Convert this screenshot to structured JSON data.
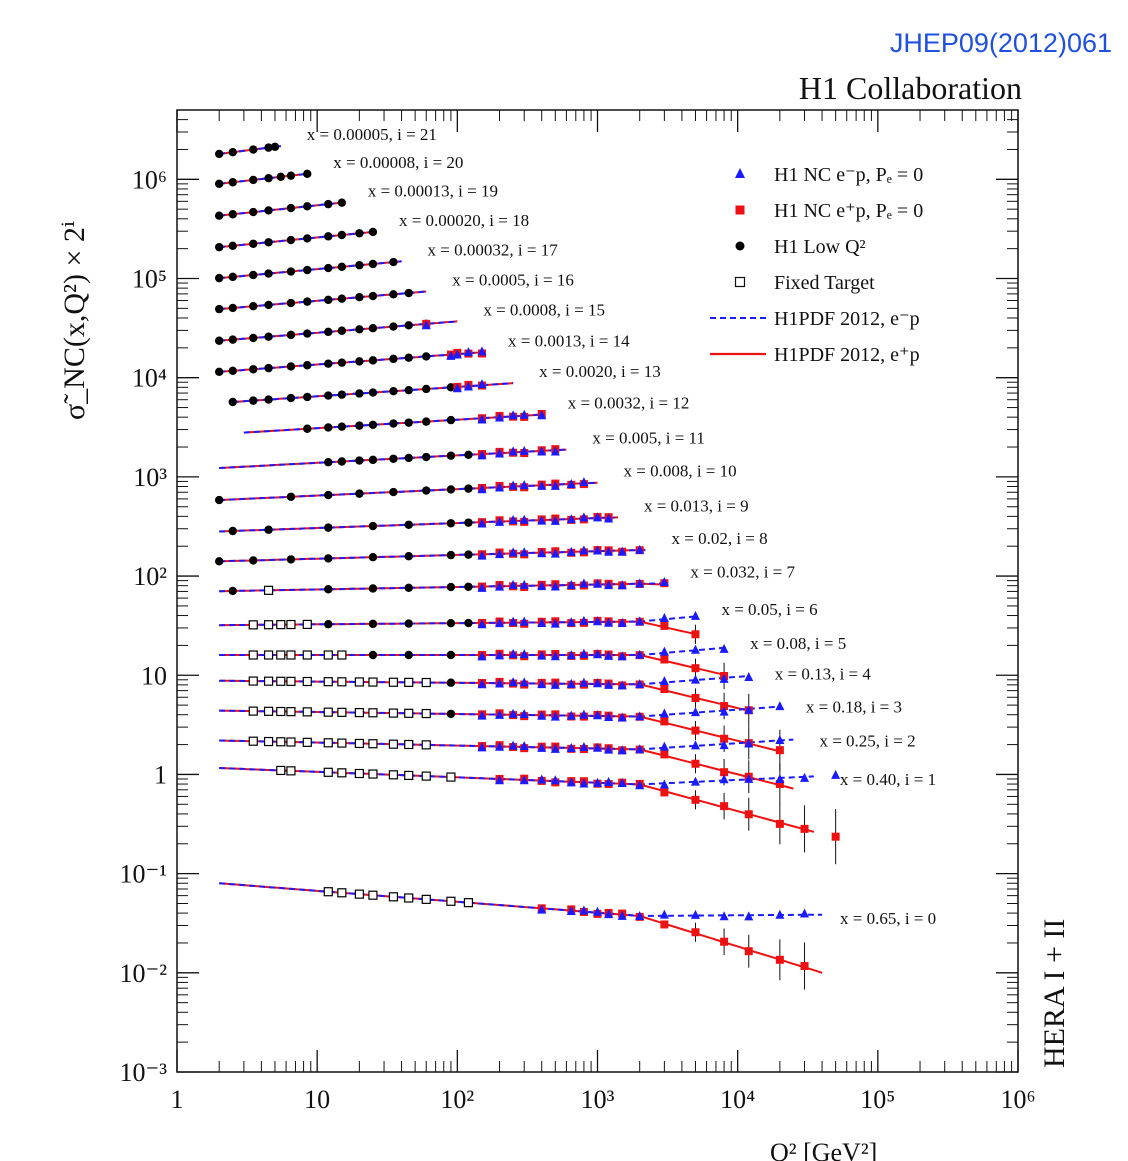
{
  "header": {
    "journal_ref": "JHEP09(2012)061",
    "collaboration": "H1 Collaboration"
  },
  "side_label": "HERA I + II",
  "colors": {
    "ep_minus": "#1a1aff",
    "ep_plus": "#ee1111",
    "low_q2": "#000000",
    "fixed_target": "#000000",
    "journal_ref": "#2050e0"
  },
  "legend": {
    "entries": [
      {
        "marker": "triangle",
        "label": "H1 NC e⁻p, Pₑ = 0"
      },
      {
        "marker": "square-filled",
        "label": "H1 NC e⁺p, Pₑ = 0"
      },
      {
        "marker": "circle",
        "label": "H1 Low Q²"
      },
      {
        "marker": "square-open",
        "label": "Fixed Target"
      },
      {
        "marker": "line-dashed",
        "label": "H1PDF 2012, e⁻p"
      },
      {
        "marker": "line-solid",
        "label": "H1PDF 2012, e⁺p"
      }
    ]
  },
  "chart_data": {
    "type": "scatter",
    "title": "",
    "xlabel": "Q² [GeV²]",
    "ylabel": "σ̃_NC(x,Q²) × 2ⁱ",
    "xscale": "log",
    "yscale": "log",
    "xlim": [
      1,
      1000000
    ],
    "ylim": [
      0.001,
      5000000
    ],
    "x_ticks": [
      "1",
      "10",
      "10²",
      "10³",
      "10⁴",
      "10⁵",
      "10⁶"
    ],
    "y_ticks": [
      "10⁻³",
      "10⁻²",
      "10⁻¹",
      "1",
      "10",
      "10²",
      "10³",
      "10⁴",
      "10⁵",
      "10⁶"
    ],
    "legend_position": "top-right",
    "bins": [
      {
        "label": "x = 0.00005, i = 21",
        "x": 5e-05,
        "i": 21,
        "base": 0.86,
        "qmin": 2.0,
        "qmax": 5.5,
        "slope": 0.18,
        "lowq": [
          2.0,
          2.5,
          3.5,
          4.5,
          5.0
        ]
      },
      {
        "label": "x = 0.00008, i = 20",
        "x": 8e-05,
        "i": 20,
        "base": 0.86,
        "qmin": 2.0,
        "qmax": 8.5,
        "slope": 0.16,
        "lowq": [
          2.0,
          2.5,
          3.5,
          4.5,
          5.5,
          6.5,
          8.5
        ]
      },
      {
        "label": "x = 0.00013, i = 19",
        "x": 0.00013,
        "i": 19,
        "base": 0.82,
        "qmin": 2.0,
        "qmax": 15,
        "slope": 0.15,
        "lowq": [
          2.0,
          2.5,
          3.5,
          4.5,
          6.5,
          8.5,
          12,
          15
        ]
      },
      {
        "label": "x = 0.00020, i = 18",
        "x": 0.0002,
        "i": 18,
        "base": 0.79,
        "qmin": 2.0,
        "qmax": 25,
        "slope": 0.14,
        "lowq": [
          2.0,
          2.5,
          3.5,
          4.5,
          6.5,
          8.5,
          12,
          15,
          20,
          25
        ]
      },
      {
        "label": "x = 0.00032, i = 17",
        "x": 0.00032,
        "i": 17,
        "base": 0.77,
        "qmin": 2.0,
        "qmax": 40,
        "slope": 0.13,
        "lowq": [
          2.0,
          2.5,
          3.5,
          4.5,
          6.5,
          8.5,
          12,
          15,
          20,
          25,
          35
        ]
      },
      {
        "label": "x = 0.0005, i = 16",
        "x": 0.0005,
        "i": 16,
        "base": 0.75,
        "qmin": 2.0,
        "qmax": 60,
        "slope": 0.12,
        "lowq": [
          2.0,
          2.5,
          3.5,
          4.5,
          6.5,
          8.5,
          12,
          15,
          20,
          25,
          35,
          45
        ]
      },
      {
        "label": "x = 0.0008, i = 15",
        "x": 0.0008,
        "i": 15,
        "base": 0.72,
        "qmin": 2.0,
        "qmax": 100,
        "slope": 0.115,
        "lowq": [
          2.0,
          2.5,
          3.5,
          4.5,
          6.5,
          8.5,
          12,
          15,
          20,
          25,
          35,
          45,
          60
        ],
        "nc": [
          60
        ]
      },
      {
        "label": "x = 0.0013, i = 14",
        "x": 0.0013,
        "i": 14,
        "base": 0.7,
        "qmin": 2.0,
        "qmax": 150,
        "slope": 0.105,
        "lowq": [
          2.0,
          2.5,
          3.5,
          4.5,
          6.5,
          8.5,
          12,
          15,
          20,
          25,
          35,
          45,
          60
        ],
        "nc": [
          90,
          100,
          120,
          150
        ]
      },
      {
        "label": "x = 0.0020, i = 13",
        "x": 0.002,
        "i": 13,
        "base": 0.68,
        "qmin": 2.5,
        "qmax": 250,
        "slope": 0.095,
        "lowq": [
          2.5,
          3.5,
          4.5,
          6.5,
          8.5,
          12,
          15,
          20,
          25,
          35,
          45,
          60,
          90
        ],
        "nc": [
          100,
          120,
          150
        ]
      },
      {
        "label": "x = 0.0032, i = 12",
        "x": 0.0032,
        "i": 12,
        "base": 0.66,
        "qmin": 3.0,
        "qmax": 400,
        "slope": 0.085,
        "lowq": [
          8.5,
          12,
          15,
          20,
          25,
          35,
          45,
          60,
          90
        ],
        "nc": [
          150,
          200,
          250,
          300,
          400
        ]
      },
      {
        "label": "x = 0.005, i = 11",
        "x": 0.005,
        "i": 11,
        "base": 0.6,
        "qmin": 2.0,
        "qmax": 600,
        "slope": 0.075,
        "lowq": [
          12,
          15,
          20,
          25,
          35,
          45,
          60,
          90,
          120
        ],
        "nc": [
          150,
          200,
          250,
          300,
          400,
          500
        ]
      },
      {
        "label": "x = 0.008, i = 10",
        "x": 0.008,
        "i": 10,
        "base": 0.57,
        "qmin": 2.0,
        "qmax": 1000,
        "slope": 0.065,
        "lowq": [
          2.0,
          6.5,
          12,
          20,
          35,
          60,
          90,
          120
        ],
        "nc": [
          150,
          200,
          250,
          300,
          400,
          500,
          650,
          800
        ]
      },
      {
        "label": "x = 0.013, i = 9",
        "x": 0.013,
        "i": 9,
        "base": 0.55,
        "qmin": 2.0,
        "qmax": 1400,
        "slope": 0.05,
        "lowq": [
          2.5,
          4.5,
          12,
          25,
          45,
          90,
          120
        ],
        "nc": [
          150,
          200,
          250,
          300,
          400,
          500,
          650,
          800,
          1000,
          1200
        ]
      },
      {
        "label": "x = 0.02, i = 8",
        "x": 0.02,
        "i": 8,
        "base": 0.55,
        "qmin": 2.0,
        "qmax": 2200,
        "slope": 0.038,
        "lowq": [
          2.0,
          3.5,
          6.5,
          12,
          25,
          45,
          90,
          120
        ],
        "nc": [
          150,
          200,
          250,
          300,
          400,
          500,
          650,
          800,
          1000,
          1200,
          1500,
          2000
        ]
      },
      {
        "label": "x = 0.032, i = 7",
        "x": 0.032,
        "i": 7,
        "base": 0.55,
        "qmin": 2.0,
        "qmax": 3000,
        "slope": 0.025,
        "lowq": [
          2.5,
          12,
          25,
          45,
          90,
          120
        ],
        "ft": [
          4.5
        ],
        "nc": [
          150,
          200,
          250,
          300,
          400,
          500,
          650,
          800,
          1000,
          1200,
          1500,
          2000,
          3000
        ],
        "drop": 0.0
      }
    ],
    "bins_high_x": [
      {
        "label": "x = 0.05, i = 6",
        "x": 0.05,
        "i": 6,
        "base": 0.5,
        "qmin": 2.0,
        "qmax": 5000,
        "slope": 0.012,
        "ft": [
          3.5,
          4.5,
          5.5,
          6.5,
          8.5
        ],
        "lowq": [
          12,
          25,
          45,
          90,
          120
        ],
        "nc": [
          150,
          200,
          250,
          300,
          400,
          500,
          650,
          800,
          1000,
          1200,
          1500,
          2000,
          3000,
          5000
        ]
      },
      {
        "label": "x = 0.08, i = 5",
        "x": 0.08,
        "i": 5,
        "base": 0.5,
        "qmin": 2.0,
        "qmax": 8000,
        "slope": 0.0,
        "ft": [
          3.5,
          4.5,
          5.5,
          6.5,
          8.5,
          12,
          15
        ],
        "lowq": [
          25,
          45,
          90
        ],
        "nc": [
          150,
          200,
          250,
          300,
          400,
          500,
          650,
          800,
          1000,
          1200,
          1500,
          2000,
          3000,
          5000,
          8000
        ]
      },
      {
        "label": "x = 0.13, i = 4",
        "x": 0.13,
        "i": 4,
        "base": 0.55,
        "qmin": 2.0,
        "qmax": 12000,
        "slope": -0.012,
        "ft": [
          3.5,
          4.5,
          5.5,
          6.5,
          8.5,
          12,
          15,
          20,
          25,
          35,
          45,
          60
        ],
        "lowq": [
          60,
          90
        ],
        "nc": [
          150,
          200,
          250,
          300,
          400,
          500,
          650,
          800,
          1000,
          1200,
          1500,
          2000,
          3000,
          5000,
          8000,
          12000
        ]
      },
      {
        "label": "x = 0.18, i = 3",
        "x": 0.18,
        "i": 3,
        "base": 0.55,
        "qmin": 2.0,
        "qmax": 20000,
        "slope": -0.02,
        "ft": [
          3.5,
          4.5,
          5.5,
          6.5,
          8.5,
          12,
          15,
          20,
          25,
          35,
          45,
          60
        ],
        "lowq": [
          90
        ],
        "nc": [
          150,
          200,
          250,
          300,
          400,
          500,
          650,
          800,
          1000,
          1200,
          1500,
          2000,
          3000,
          5000,
          8000,
          12000,
          20000
        ]
      },
      {
        "label": "x = 0.25, i = 2",
        "x": 0.25,
        "i": 2,
        "base": 0.55,
        "qmin": 2.0,
        "qmax": 25000,
        "slope": -0.03,
        "ft": [
          3.5,
          4.5,
          5.5,
          6.5,
          8.5,
          12,
          15,
          20,
          25,
          35,
          45,
          60
        ],
        "nc": [
          150,
          200,
          250,
          300,
          400,
          500,
          650,
          800,
          1000,
          1200,
          1500,
          2000,
          3000,
          5000,
          8000,
          12000,
          20000
        ]
      },
      {
        "label": "x = 0.40, i = 1",
        "x": 0.4,
        "i": 1,
        "base": 0.58,
        "qmin": 2.0,
        "qmax": 35000,
        "slope": -0.055,
        "ft": [
          5.5,
          6.5,
          12,
          15,
          20,
          25,
          35,
          45,
          60,
          90
        ],
        "nc": [
          200,
          300,
          400,
          500,
          650,
          800,
          1000,
          1200,
          1500,
          2000,
          3000,
          5000,
          8000,
          12000,
          20000,
          30000,
          50000
        ]
      },
      {
        "label": "x = 0.65, i = 0",
        "x": 0.65,
        "i": 0,
        "base": 0.08,
        "qmin": 2.0,
        "qmax": 40000,
        "slope": -0.11,
        "ft": [
          12,
          15,
          20,
          25,
          35,
          45,
          60,
          90,
          120
        ],
        "nc": [
          400,
          650,
          800,
          1000,
          1200,
          1500,
          2000,
          3000,
          5000,
          8000,
          12000,
          20000,
          30000
        ]
      }
    ]
  }
}
